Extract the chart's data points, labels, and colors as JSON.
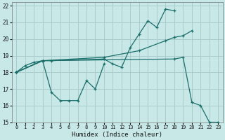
{
  "xlabel": "Humidex (Indice chaleur)",
  "background_color": "#c8e8e8",
  "grid_color": "#aacccc",
  "line_color": "#1a6e6a",
  "xlim": [
    -0.5,
    23.5
  ],
  "ylim": [
    15,
    22.2
  ],
  "s1x": [
    0,
    1,
    2,
    3,
    4,
    10,
    11,
    12,
    13,
    14,
    15,
    16,
    17,
    18
  ],
  "s1y": [
    18.0,
    18.4,
    18.6,
    18.7,
    18.7,
    18.8,
    18.5,
    18.3,
    19.5,
    20.3,
    21.1,
    20.7,
    21.8,
    21.7
  ],
  "s2x": [
    0,
    3,
    4,
    5,
    6,
    7,
    8,
    9,
    10
  ],
  "s2y": [
    18.0,
    18.7,
    16.8,
    16.3,
    16.3,
    16.3,
    17.5,
    17.0,
    18.5
  ],
  "s3x": [
    0,
    3,
    10,
    14,
    17,
    18,
    19,
    20
  ],
  "s3y": [
    18.0,
    18.7,
    18.9,
    19.3,
    19.9,
    20.1,
    20.2,
    20.5
  ],
  "s4x": [
    0,
    3,
    18,
    19,
    20,
    21,
    22,
    23
  ],
  "s4y": [
    18.0,
    18.7,
    18.8,
    18.9,
    16.2,
    16.0,
    15.0,
    15.0
  ],
  "xticks": [
    0,
    1,
    2,
    3,
    4,
    5,
    6,
    7,
    8,
    9,
    10,
    11,
    12,
    13,
    14,
    15,
    16,
    17,
    18,
    19,
    20,
    21,
    22,
    23
  ],
  "yticks": [
    15,
    16,
    17,
    18,
    19,
    20,
    21,
    22
  ]
}
